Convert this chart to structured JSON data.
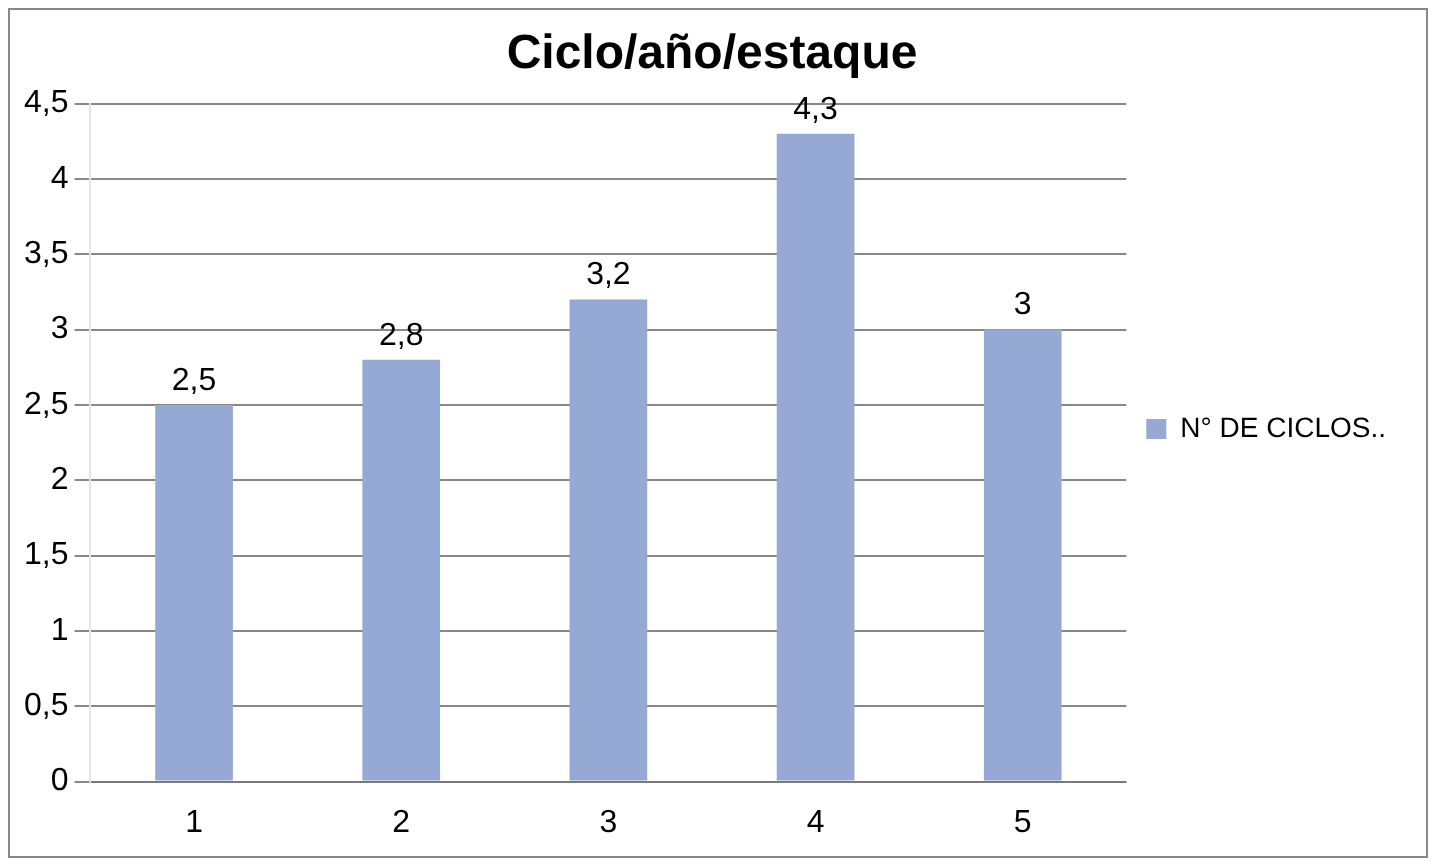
{
  "chart_data": {
    "type": "bar",
    "title": "Ciclo/año/estaque",
    "categories": [
      "1",
      "2",
      "3",
      "4",
      "5"
    ],
    "series": [
      {
        "name": "N° DE CICLOS..",
        "color": "#95a9d4",
        "values": [
          2.5,
          2.8,
          3.2,
          4.3,
          3
        ],
        "value_labels": [
          "2,5",
          "2,8",
          "3,2",
          "4,3",
          "3"
        ]
      }
    ],
    "ylim": [
      0,
      4.5
    ],
    "yticks": [
      0,
      {
        "value": 0.5,
        "label": "0,5"
      },
      1,
      {
        "value": 1.5,
        "label": "1,5"
      },
      2,
      {
        "value": 2.5,
        "label": "2,5"
      },
      3,
      {
        "value": 3.5,
        "label": "3,5"
      },
      4,
      {
        "value": 4.5,
        "label": "4,5"
      }
    ],
    "grid": "y",
    "legend": "right"
  }
}
